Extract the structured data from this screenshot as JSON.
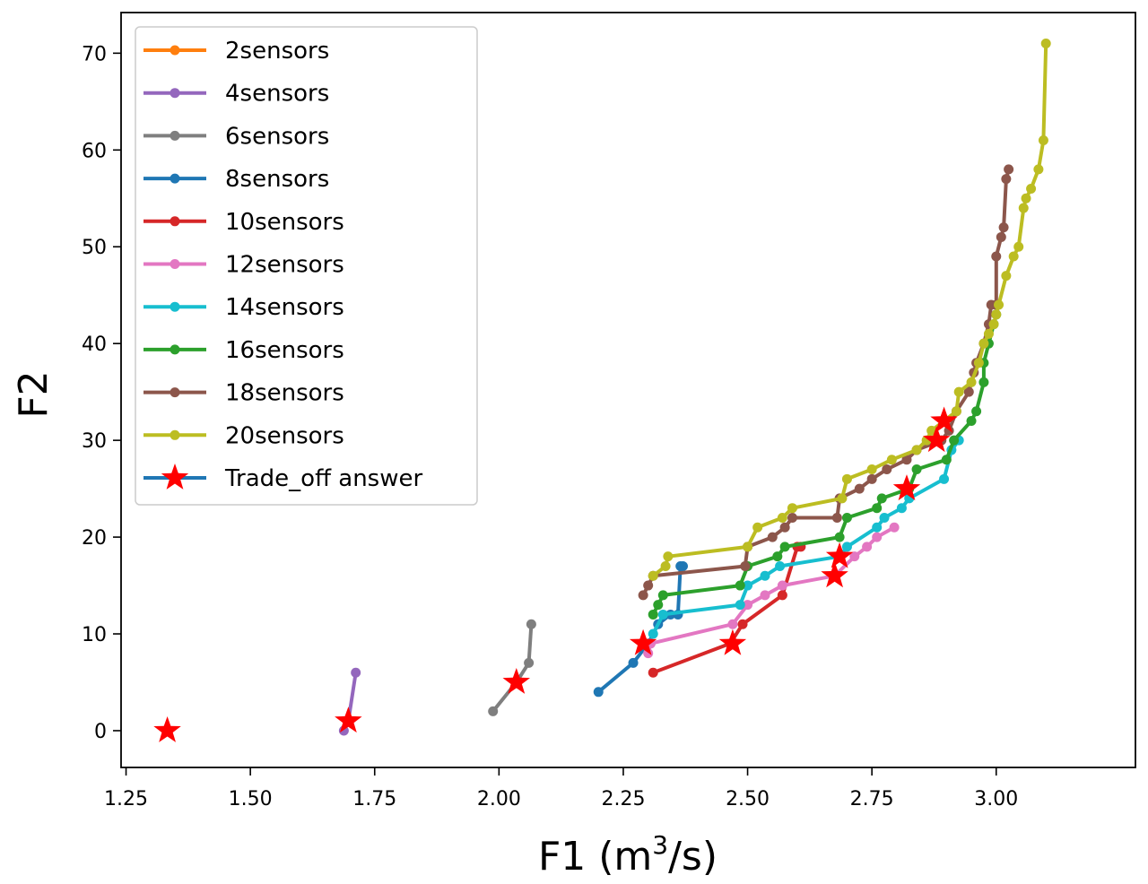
{
  "chart_data": {
    "type": "line",
    "title": "",
    "xlabel": "F1 (m",
    "xlabel_sup": "3",
    "xlabel_tail": "/s)",
    "ylabel": "F2",
    "xlim": [
      1.24,
      3.28
    ],
    "ylim": [
      -3.8,
      74.2
    ],
    "xticks": [
      1.25,
      1.5,
      1.75,
      2.0,
      2.25,
      2.5,
      2.75,
      3.0
    ],
    "xtick_labels": [
      "1.25",
      "1.50",
      "1.75",
      "2.00",
      "2.25",
      "2.50",
      "2.75",
      "3.00"
    ],
    "yticks": [
      0,
      10,
      20,
      30,
      40,
      50,
      60,
      70
    ],
    "ytick_labels": [
      "0",
      "10",
      "20",
      "30",
      "40",
      "50",
      "60",
      "70"
    ],
    "legend_position": "top-left",
    "series": [
      {
        "name": "2sensors",
        "color": "#ff7f0e",
        "points": [
          [
            1.333,
            0
          ]
        ]
      },
      {
        "name": "4sensors",
        "color": "#9467bd",
        "points": [
          [
            1.688,
            0
          ],
          [
            1.697,
            1
          ],
          [
            1.712,
            6
          ]
        ]
      },
      {
        "name": "6sensors",
        "color": "#7f7f7f",
        "points": [
          [
            1.988,
            2
          ],
          [
            2.035,
            5
          ],
          [
            2.06,
            7
          ],
          [
            2.065,
            11
          ]
        ]
      },
      {
        "name": "8sensors",
        "color": "#1f77b4",
        "points": [
          [
            2.2,
            4
          ],
          [
            2.27,
            7
          ],
          [
            2.3,
            9
          ],
          [
            2.32,
            11
          ],
          [
            2.345,
            12
          ],
          [
            2.36,
            12
          ],
          [
            2.365,
            17
          ],
          [
            2.37,
            17
          ]
        ]
      },
      {
        "name": "10sensors",
        "color": "#d62728",
        "points": [
          [
            2.31,
            6
          ],
          [
            2.465,
            9
          ],
          [
            2.49,
            11
          ],
          [
            2.57,
            14
          ],
          [
            2.6,
            19
          ],
          [
            2.607,
            19
          ]
        ]
      },
      {
        "name": "12sensors",
        "color": "#e377c2",
        "points": [
          [
            2.3,
            8
          ],
          [
            2.305,
            9
          ],
          [
            2.47,
            11
          ],
          [
            2.5,
            13
          ],
          [
            2.535,
            14
          ],
          [
            2.57,
            15
          ],
          [
            2.675,
            16
          ],
          [
            2.715,
            18
          ],
          [
            2.74,
            19
          ],
          [
            2.76,
            20
          ],
          [
            2.795,
            21
          ]
        ]
      },
      {
        "name": "14sensors",
        "color": "#17becf",
        "points": [
          [
            2.31,
            10
          ],
          [
            2.33,
            12
          ],
          [
            2.485,
            13
          ],
          [
            2.5,
            15
          ],
          [
            2.535,
            16
          ],
          [
            2.565,
            17
          ],
          [
            2.685,
            18
          ],
          [
            2.7,
            19
          ],
          [
            2.76,
            21
          ],
          [
            2.775,
            22
          ],
          [
            2.81,
            23
          ],
          [
            2.825,
            24
          ],
          [
            2.895,
            26
          ],
          [
            2.91,
            29
          ],
          [
            2.925,
            30
          ]
        ]
      },
      {
        "name": "16sensors",
        "color": "#2ca02c",
        "points": [
          [
            2.31,
            12
          ],
          [
            2.32,
            13
          ],
          [
            2.33,
            14
          ],
          [
            2.485,
            15
          ],
          [
            2.5,
            17
          ],
          [
            2.56,
            18
          ],
          [
            2.575,
            19
          ],
          [
            2.685,
            20
          ],
          [
            2.7,
            22
          ],
          [
            2.76,
            23
          ],
          [
            2.77,
            24
          ],
          [
            2.825,
            25
          ],
          [
            2.84,
            27
          ],
          [
            2.9,
            28
          ],
          [
            2.915,
            30
          ],
          [
            2.95,
            32
          ],
          [
            2.96,
            33
          ],
          [
            2.975,
            36
          ],
          [
            2.975,
            38
          ],
          [
            2.985,
            40
          ],
          [
            2.995,
            42
          ],
          [
            3.0,
            43
          ]
        ]
      },
      {
        "name": "18sensors",
        "color": "#8c564b",
        "points": [
          [
            2.29,
            14
          ],
          [
            2.3,
            15
          ],
          [
            2.31,
            16
          ],
          [
            2.495,
            17
          ],
          [
            2.5,
            19
          ],
          [
            2.55,
            20
          ],
          [
            2.575,
            21
          ],
          [
            2.59,
            22
          ],
          [
            2.68,
            22
          ],
          [
            2.685,
            24
          ],
          [
            2.725,
            25
          ],
          [
            2.75,
            26
          ],
          [
            2.78,
            27
          ],
          [
            2.82,
            28
          ],
          [
            2.84,
            29
          ],
          [
            2.89,
            30
          ],
          [
            2.905,
            31
          ],
          [
            2.92,
            33
          ],
          [
            2.945,
            35
          ],
          [
            2.955,
            37
          ],
          [
            2.96,
            38
          ],
          [
            2.975,
            40
          ],
          [
            2.985,
            42
          ],
          [
            2.99,
            44
          ],
          [
            3.0,
            44
          ],
          [
            3.0,
            49
          ],
          [
            3.01,
            51
          ],
          [
            3.015,
            52
          ],
          [
            3.02,
            57
          ],
          [
            3.025,
            58
          ]
        ]
      },
      {
        "name": "20sensors",
        "color": "#bcbd22",
        "points": [
          [
            2.31,
            16
          ],
          [
            2.335,
            17
          ],
          [
            2.34,
            18
          ],
          [
            2.5,
            19
          ],
          [
            2.52,
            21
          ],
          [
            2.57,
            22
          ],
          [
            2.59,
            23
          ],
          [
            2.69,
            24
          ],
          [
            2.7,
            26
          ],
          [
            2.75,
            27
          ],
          [
            2.79,
            28
          ],
          [
            2.84,
            29
          ],
          [
            2.86,
            30
          ],
          [
            2.87,
            31
          ],
          [
            2.92,
            33
          ],
          [
            2.925,
            35
          ],
          [
            2.95,
            36
          ],
          [
            2.965,
            38
          ],
          [
            2.975,
            40
          ],
          [
            2.985,
            41
          ],
          [
            2.995,
            42
          ],
          [
            3.0,
            43
          ],
          [
            3.005,
            44
          ],
          [
            3.02,
            47
          ],
          [
            3.035,
            49
          ],
          [
            3.045,
            50
          ],
          [
            3.055,
            54
          ],
          [
            3.06,
            55
          ],
          [
            3.07,
            56
          ],
          [
            3.085,
            58
          ],
          [
            3.095,
            61
          ],
          [
            3.1,
            71
          ]
        ]
      },
      {
        "name": "Trade_off answer",
        "color": "#ff0000",
        "line_color": "#1f77b4",
        "marker": "star",
        "points": [
          [
            1.333,
            0
          ],
          [
            1.697,
            1
          ],
          [
            2.035,
            5
          ],
          [
            2.29,
            9
          ],
          [
            2.47,
            9
          ],
          [
            2.675,
            16
          ],
          [
            2.685,
            18
          ],
          [
            2.82,
            25
          ],
          [
            2.88,
            30
          ],
          [
            2.895,
            32
          ]
        ]
      }
    ]
  }
}
